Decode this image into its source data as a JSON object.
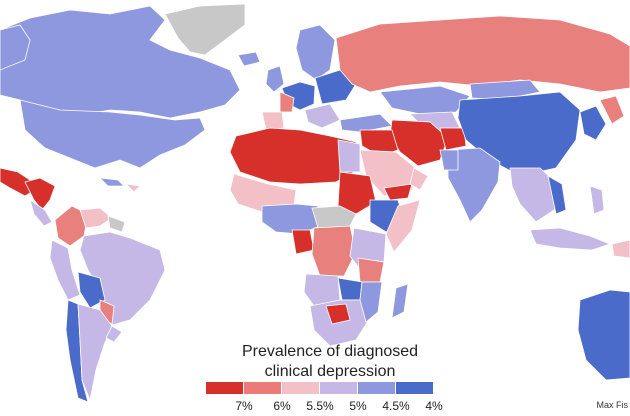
{
  "legend": {
    "title_line1": "Prevalence of diagnosed",
    "title_line2": "clinical depression",
    "colors": [
      "#d7302a",
      "#ea7b79",
      "#f2c0c6",
      "#c5b8e6",
      "#8e98de",
      "#4a6bc9"
    ],
    "tick_labels": [
      "7%",
      "6%",
      "5.5%",
      "5%",
      "4.5%",
      "4%"
    ]
  },
  "credit": "Max Fis",
  "palette": {
    "red": "#d7302a",
    "salmon": "#e8807e",
    "pink": "#f2c0c6",
    "lavender": "#c5b8e6",
    "periwinkle": "#8e98de",
    "blue": "#4a6bc9",
    "nodata": "#c8c8c8"
  }
}
